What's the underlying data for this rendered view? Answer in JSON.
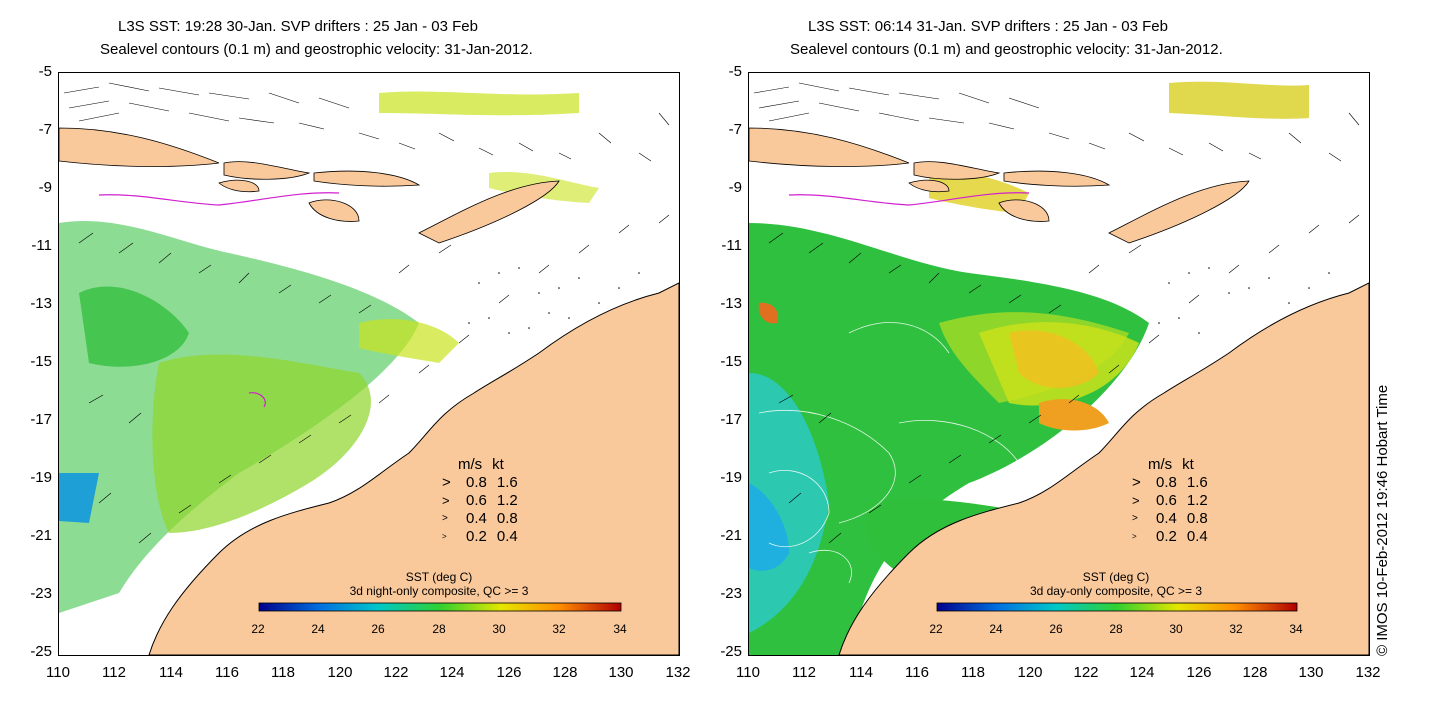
{
  "panels": [
    {
      "title_line1": "L3S SST: 19:28 30-Jan. SVP drifters : 25 Jan - 03 Feb",
      "title_line2": "Sealevel contours (0.1 m) and geostrophic velocity: 31-Jan-2012.",
      "colorbar_title": "SST (deg C)",
      "colorbar_subtitle": "3d night-only composite, QC >= 3"
    },
    {
      "title_line1": "L3S SST: 06:14 31-Jan. SVP drifters : 25 Jan - 03 Feb",
      "title_line2": "Sealevel contours (0.1 m) and geostrophic velocity: 31-Jan-2012.",
      "colorbar_title": "SST (deg C)",
      "colorbar_subtitle": "3d day-only composite, QC >= 3"
    }
  ],
  "y_ticks": [
    "-5",
    "-7",
    "-9",
    "-11",
    "-13",
    "-15",
    "-17",
    "-19",
    "-21",
    "-23",
    "-25"
  ],
  "x_ticks": [
    "110",
    "112",
    "114",
    "116",
    "118",
    "120",
    "122",
    "124",
    "126",
    "128",
    "130",
    "132"
  ],
  "colorbar_ticks": [
    "22",
    "24",
    "26",
    "28",
    "30",
    "32",
    "34"
  ],
  "velocity_legend": {
    "header_ms": "m/s",
    "header_kt": "kt",
    "rows": [
      {
        "ms": "0.8",
        "kt": "1.6"
      },
      {
        "ms": "0.6",
        "kt": "1.2"
      },
      {
        "ms": "0.4",
        "kt": "0.8"
      },
      {
        "ms": "0.2",
        "kt": "0.4"
      }
    ]
  },
  "credit": "© IMOS 10-Feb-2012 19:46 Hobart Time",
  "colors": {
    "land": "#f9c89b",
    "sst_cool": "#1e9fd6",
    "sst_mid": "#2fbf3a",
    "sst_warm": "#c9e21c",
    "sst_hot": "#f0a020",
    "drifter": "#d020d0"
  }
}
